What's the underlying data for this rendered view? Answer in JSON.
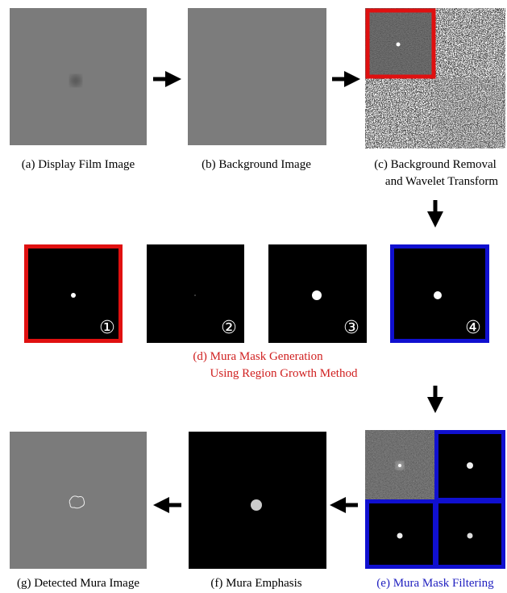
{
  "figure": {
    "captions": {
      "a": [
        "(a) Display Film Image"
      ],
      "b": [
        "(b) Background Image"
      ],
      "c": [
        "(c) Background Removal",
        "and Wavelet Transform"
      ],
      "d": [
        "(d) Mura Mask Generation",
        "Using Region Growth Method"
      ],
      "e": [
        "(e) Mura Mask Filtering"
      ],
      "f": [
        "(f) Mura Emphasis"
      ],
      "g": [
        "(g) Detected Mura Image"
      ]
    },
    "mask_steps": [
      "①",
      "②",
      "③",
      "④"
    ]
  }
}
